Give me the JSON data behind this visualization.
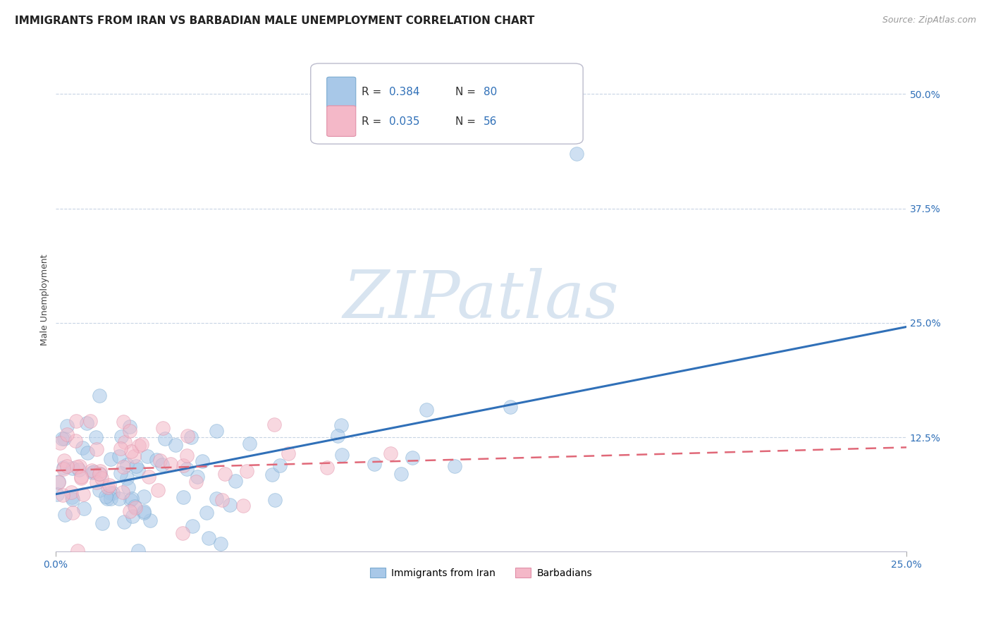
{
  "title": "IMMIGRANTS FROM IRAN VS BARBADIAN MALE UNEMPLOYMENT CORRELATION CHART",
  "source": "Source: ZipAtlas.com",
  "ylabel_label": "Male Unemployment",
  "right_ytick_labels": [
    "50.0%",
    "37.5%",
    "25.0%",
    "12.5%"
  ],
  "right_ytick_values": [
    0.5,
    0.375,
    0.25,
    0.125
  ],
  "legend_label_blue": "Immigrants from Iran",
  "legend_label_pink": "Barbadians",
  "blue_color": "#a8c8e8",
  "blue_edge_color": "#7aaad0",
  "pink_color": "#f4b8c8",
  "pink_edge_color": "#e090a8",
  "blue_line_color": "#3070b8",
  "pink_line_color": "#e06878",
  "pink_line_dash": [
    6,
    4
  ],
  "watermark_text": "ZIPatlas",
  "watermark_color": "#d8e4f0",
  "xlim": [
    0.0,
    0.25
  ],
  "ylim": [
    0.0,
    0.55
  ],
  "blue_r": "0.384",
  "blue_n": "80",
  "pink_r": "0.035",
  "pink_n": "56",
  "legend_text_color": "#3070b8",
  "background_color": "#ffffff",
  "grid_color": "#c8d4e4",
  "title_fontsize": 11,
  "axis_label_fontsize": 9,
  "tick_fontsize": 10,
  "legend_fontsize": 11,
  "source_fontsize": 9
}
